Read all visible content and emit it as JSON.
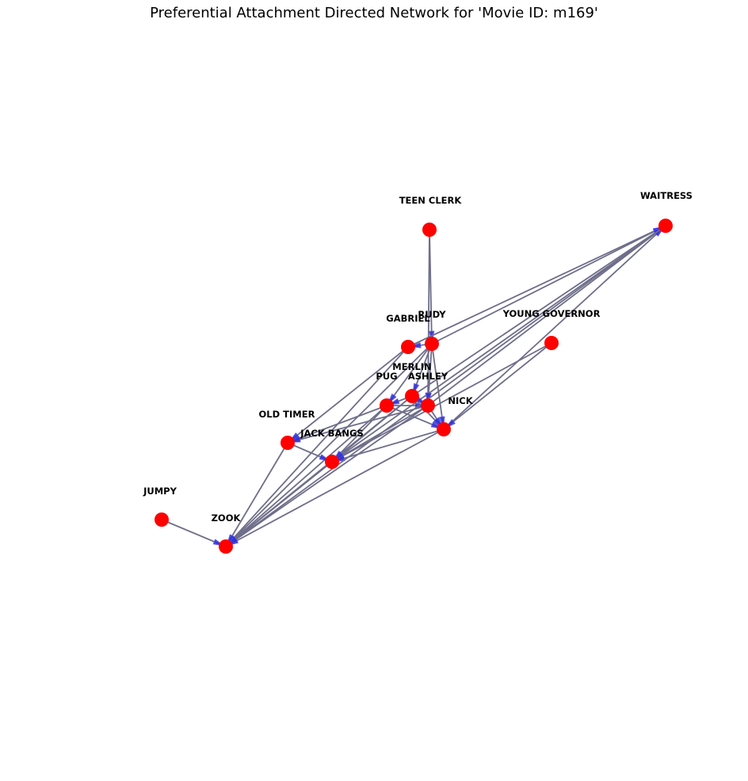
{
  "title": "Preferential Attachment Directed Network for 'Movie ID: m169'",
  "colors": {
    "node": "#ff0000",
    "edge": "#6e6e8a",
    "arrow": "#2f2fd6"
  },
  "nodes": [
    {
      "id": "waitress",
      "label": "WAITRESS"
    },
    {
      "id": "teen_clerk",
      "label": "TEEN CLERK"
    },
    {
      "id": "rudy",
      "label": "RUDY"
    },
    {
      "id": "gabriel",
      "label": "GABRIEL"
    },
    {
      "id": "young_governor",
      "label": "YOUNG GOVERNOR"
    },
    {
      "id": "merlin",
      "label": "MERLIN"
    },
    {
      "id": "pug",
      "label": "PUG"
    },
    {
      "id": "ashley",
      "label": "ASHLEY"
    },
    {
      "id": "nick",
      "label": "NICK"
    },
    {
      "id": "old_timer",
      "label": "OLD TIMER"
    },
    {
      "id": "jack_bangs",
      "label": "JACK BANGS"
    },
    {
      "id": "jumpy",
      "label": "JUMPY"
    },
    {
      "id": "zook",
      "label": "ZOOK"
    }
  ],
  "edges": [
    [
      "teen_clerk",
      "rudy"
    ],
    [
      "teen_clerk",
      "ashley"
    ],
    [
      "rudy",
      "waitress"
    ],
    [
      "gabriel",
      "waitress"
    ],
    [
      "merlin",
      "waitress"
    ],
    [
      "ashley",
      "waitress"
    ],
    [
      "nick",
      "waitress"
    ],
    [
      "jack_bangs",
      "waitress"
    ],
    [
      "young_governor",
      "jack_bangs"
    ],
    [
      "young_governor",
      "nick"
    ],
    [
      "rudy",
      "gabriel"
    ],
    [
      "rudy",
      "merlin"
    ],
    [
      "rudy",
      "pug"
    ],
    [
      "rudy",
      "nick"
    ],
    [
      "rudy",
      "zook"
    ],
    [
      "rudy",
      "ashley"
    ],
    [
      "gabriel",
      "old_timer"
    ],
    [
      "gabriel",
      "zook"
    ],
    [
      "merlin",
      "ashley"
    ],
    [
      "merlin",
      "pug"
    ],
    [
      "merlin",
      "nick"
    ],
    [
      "merlin",
      "jack_bangs"
    ],
    [
      "merlin",
      "zook"
    ],
    [
      "pug",
      "ashley"
    ],
    [
      "pug",
      "nick"
    ],
    [
      "pug",
      "old_timer"
    ],
    [
      "pug",
      "jack_bangs"
    ],
    [
      "pug",
      "zook"
    ],
    [
      "ashley",
      "nick"
    ],
    [
      "ashley",
      "old_timer"
    ],
    [
      "ashley",
      "jack_bangs"
    ],
    [
      "ashley",
      "zook"
    ],
    [
      "nick",
      "jack_bangs"
    ],
    [
      "nick",
      "zook"
    ],
    [
      "old_timer",
      "jack_bangs"
    ],
    [
      "old_timer",
      "zook"
    ],
    [
      "jack_bangs",
      "zook"
    ],
    [
      "jumpy",
      "zook"
    ],
    [
      "waitress",
      "zook"
    ]
  ]
}
